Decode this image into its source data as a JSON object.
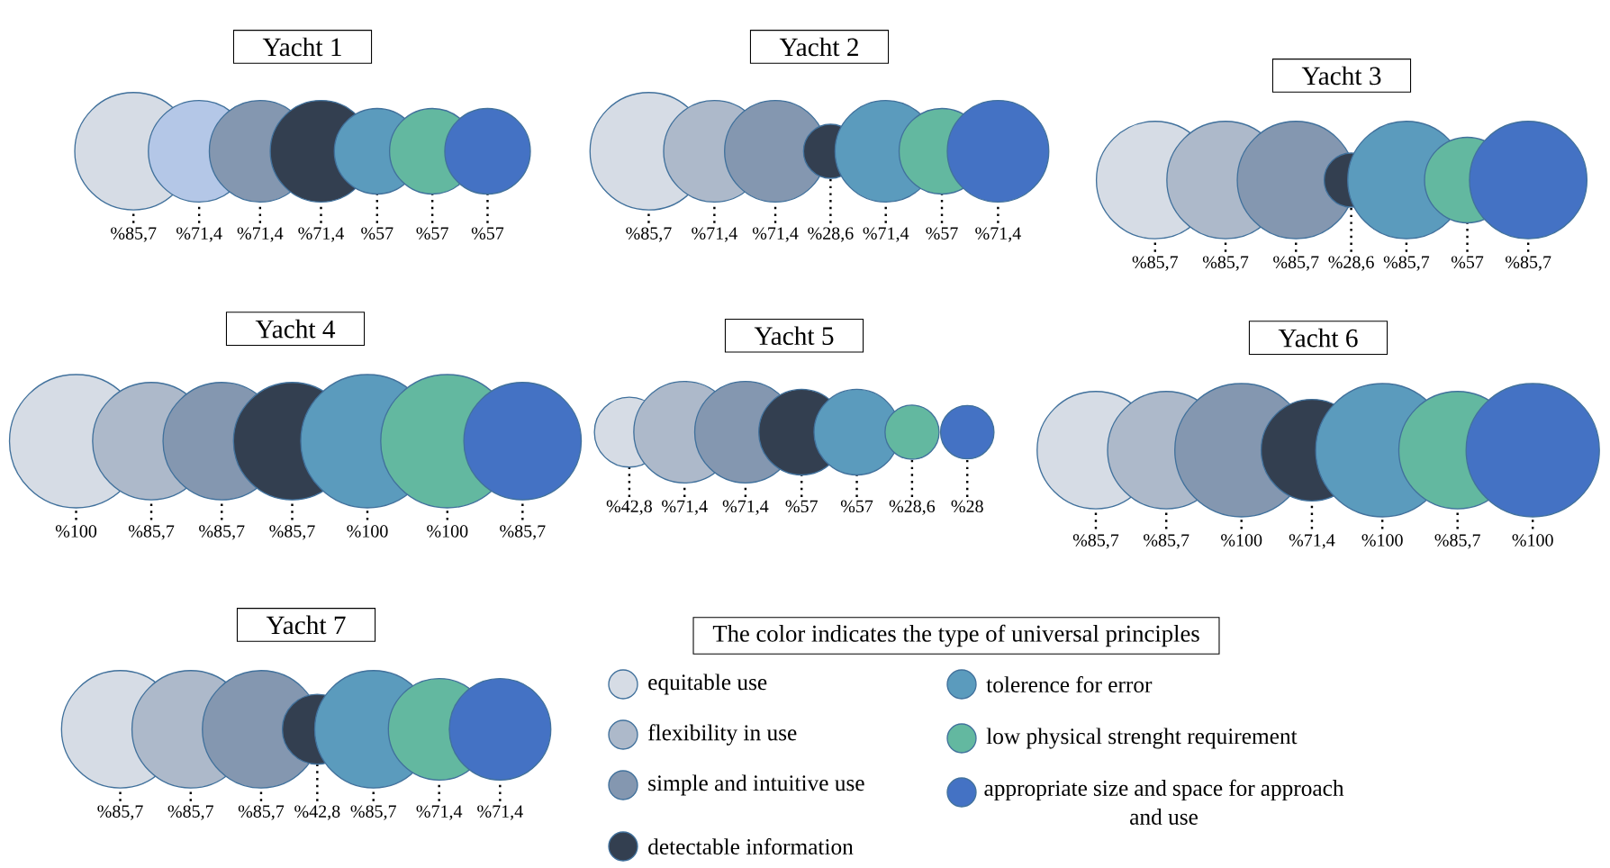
{
  "chart_data": [
    {
      "type": "other",
      "title": "Yacht 1",
      "values": [
        85.7,
        71.4,
        71.4,
        71.4,
        57,
        57,
        57
      ],
      "value_labels": [
        "%85,7",
        "%71,4",
        "%71,4",
        "%71,4",
        "%57",
        "%57",
        "%57"
      ],
      "colors": [
        "#d6dce5",
        "#b4c7e7",
        "#8497b0",
        "#333f50",
        "#5b9bbd",
        "#63b8a0",
        "#4472c4"
      ]
    },
    {
      "type": "other",
      "title": "Yacht 2",
      "values": [
        85.7,
        71.4,
        71.4,
        28.6,
        71.4,
        57,
        71.4
      ],
      "value_labels": [
        "%85,7",
        "%71,4",
        "%71,4",
        "%28,6",
        "%71,4",
        "%57",
        "%71,4"
      ],
      "colors": [
        "#d6dce5",
        "#adb9ca",
        "#8497b0",
        "#333f50",
        "#5b9bbd",
        "#63b8a0",
        "#4472c4"
      ]
    },
    {
      "type": "other",
      "title": "Yacht 3",
      "values": [
        85.7,
        85.7,
        85.7,
        28.6,
        85.7,
        57,
        85.7
      ],
      "value_labels": [
        "%85,7",
        "%85,7",
        "%85,7",
        "%28,6",
        "%85,7",
        "%57",
        "%85,7"
      ],
      "colors": [
        "#d6dce5",
        "#adb9ca",
        "#8497b0",
        "#333f50",
        "#5b9bbd",
        "#63b8a0",
        "#4472c4"
      ]
    },
    {
      "type": "other",
      "title": "Yacht 4",
      "values": [
        100,
        85.7,
        85.7,
        85.7,
        100,
        100,
        85.7
      ],
      "value_labels": [
        "%100",
        "%85,7",
        "%85,7",
        "%85,7",
        "%100",
        "%100",
        "%85,7"
      ],
      "colors": [
        "#d6dce5",
        "#adb9ca",
        "#8497b0",
        "#333f50",
        "#5b9bbd",
        "#63b8a0",
        "#4472c4"
      ]
    },
    {
      "type": "other",
      "title": "Yacht 5",
      "values": [
        42.8,
        71.4,
        71.4,
        57,
        57,
        28.6,
        28
      ],
      "value_labels": [
        "%42,8",
        "%71,4",
        "%71,4",
        "%57",
        "%57",
        "%28,6",
        "%28"
      ],
      "colors": [
        "#d6dce5",
        "#adb9ca",
        "#8497b0",
        "#333f50",
        "#5b9bbd",
        "#63b8a0",
        "#4472c4"
      ]
    },
    {
      "type": "other",
      "title": "Yacht 6",
      "values": [
        85.7,
        85.7,
        100,
        71.4,
        100,
        85.7,
        100
      ],
      "value_labels": [
        "%85,7",
        "%85,7",
        "%100",
        "%71,4",
        "%100",
        "%85,7",
        "%100"
      ],
      "colors": [
        "#d6dce5",
        "#adb9ca",
        "#8497b0",
        "#333f50",
        "#5b9bbd",
        "#63b8a0",
        "#4472c4"
      ]
    },
    {
      "type": "other",
      "title": "Yacht 7",
      "values": [
        85.7,
        85.7,
        85.7,
        42.8,
        85.7,
        71.4,
        71.4
      ],
      "value_labels": [
        "%85,7",
        "%85,7",
        "%85,7",
        "%42,8",
        "%85,7",
        "%71,4",
        "%71,4"
      ],
      "colors": [
        "#d6dce5",
        "#adb9ca",
        "#8497b0",
        "#333f50",
        "#5b9bbd",
        "#63b8a0",
        "#4472c4"
      ]
    },
    {
      "type": "other",
      "legend_title": "The color indicates the type of universal principles",
      "categories": [
        "equitable use",
        "flexibility in use",
        "simple and intuitive use",
        "detectable information",
        "tolerence for error",
        "low physical strenght requirement",
        "appropriate size and space for approach and use"
      ],
      "colors": [
        "#d6dce5",
        "#adb9ca",
        "#8497b0",
        "#333f50",
        "#5b9bbd",
        "#63b8a0",
        "#4472c4"
      ]
    }
  ]
}
